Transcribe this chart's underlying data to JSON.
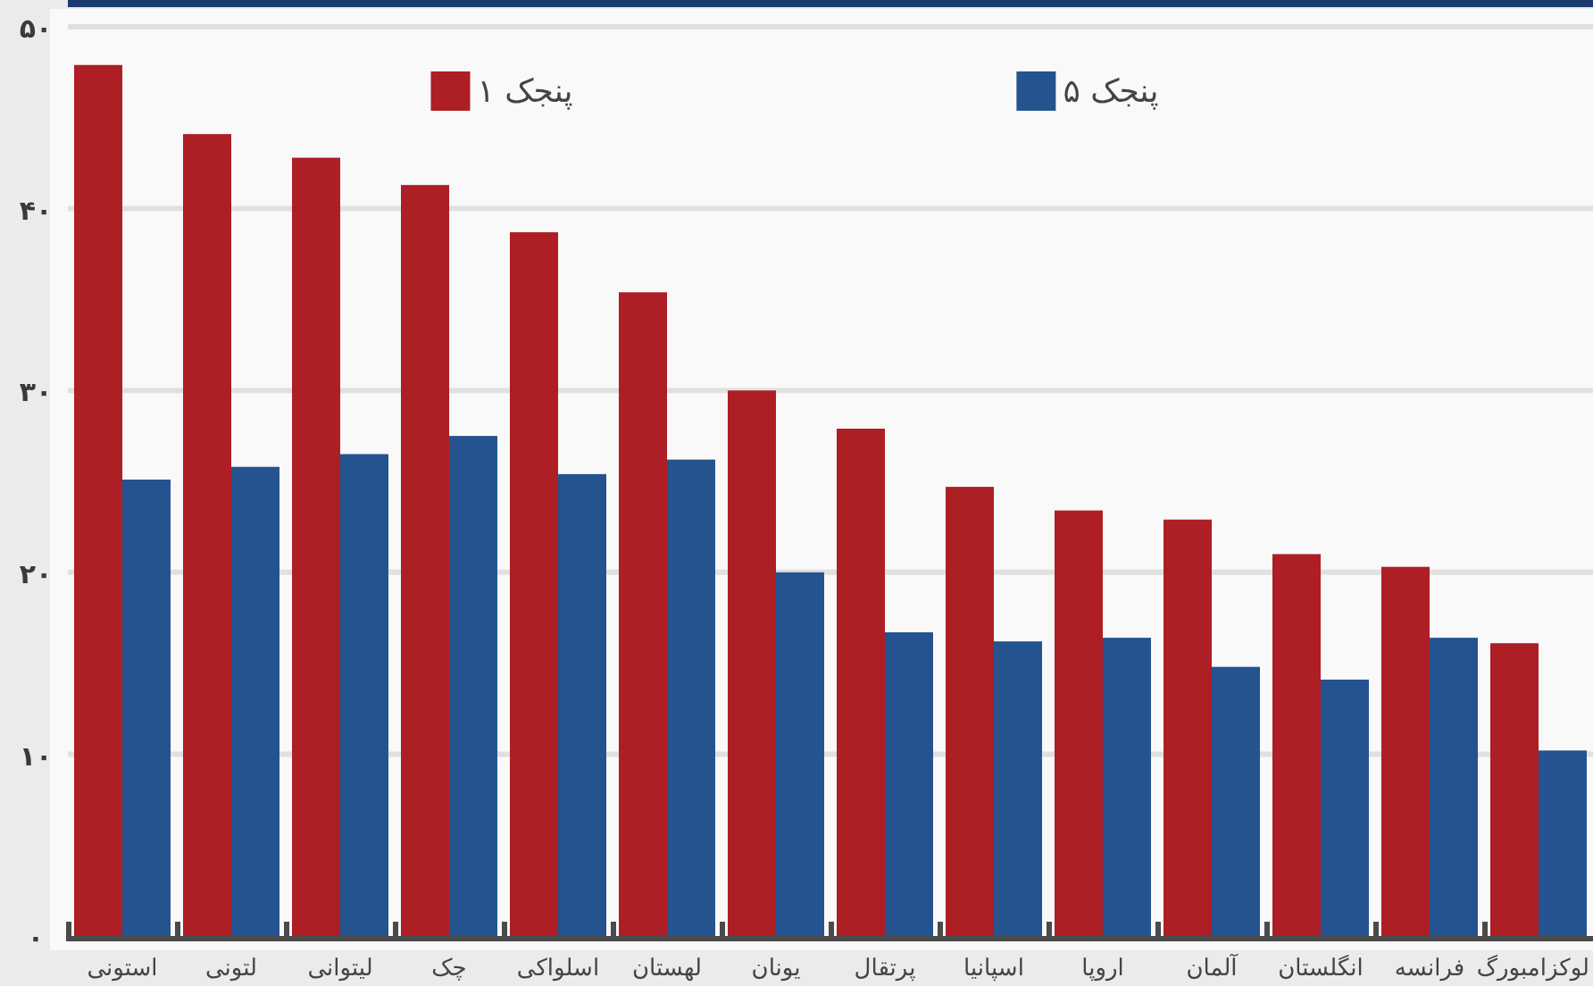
{
  "chart_data": {
    "type": "bar",
    "categories": [
      "استونی",
      "لتونی",
      "لیتوانی",
      "چک",
      "اسلواکی",
      "لهستان",
      "یونان",
      "پرتقال",
      "اسپانیا",
      "اروپا",
      "آلمان",
      "انگلستان",
      "فرانسه",
      "لوکزامبورگ"
    ],
    "series": [
      {
        "name": "پنجک ۱",
        "color": "#ad1e25",
        "values": [
          47.9,
          44.1,
          42.8,
          41.3,
          38.7,
          35.4,
          30.0,
          27.9,
          24.7,
          23.4,
          22.9,
          21.0,
          20.3,
          16.1
        ]
      },
      {
        "name": "پنجک ۵",
        "color": "#25538f",
        "values": [
          25.1,
          25.8,
          26.5,
          27.5,
          25.4,
          26.2,
          20.0,
          16.7,
          16.2,
          16.4,
          14.8,
          14.1,
          16.4,
          10.2
        ]
      }
    ],
    "ylim": [
      0,
      50
    ],
    "yticks": [
      {
        "value": 0,
        "label": "۰"
      },
      {
        "value": 10,
        "label": "۱۰"
      },
      {
        "value": 20,
        "label": "۲۰"
      },
      {
        "value": 30,
        "label": "۳۰"
      },
      {
        "value": 40,
        "label": "۴۰"
      },
      {
        "value": 50,
        "label": "۵۰"
      }
    ],
    "grid": "y",
    "legend": "top"
  }
}
